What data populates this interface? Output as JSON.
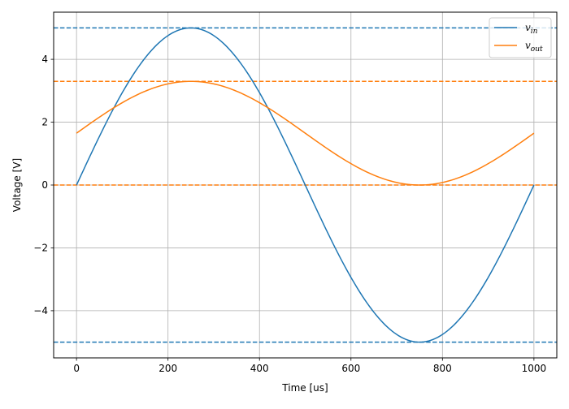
{
  "chart_data": {
    "type": "line",
    "title": "",
    "xlabel": "Time [us]",
    "ylabel": "Voltage [V]",
    "xlim": [
      -50,
      1050
    ],
    "ylim": [
      -5.5,
      5.5
    ],
    "xticks": [
      0,
      200,
      400,
      600,
      800,
      1000
    ],
    "yticks": [
      -4,
      -2,
      0,
      2,
      4
    ],
    "xtick_labels": [
      "0",
      "200",
      "400",
      "600",
      "800",
      "1000"
    ],
    "ytick_labels": [
      "−4",
      "−2",
      "0",
      "2",
      "4"
    ],
    "grid": true,
    "legend_position": "top-right",
    "series": [
      {
        "name": "v_in",
        "legend_main": "v",
        "legend_sub": "in",
        "color": "#1f77b4",
        "x": [
          0,
          50,
          100,
          150,
          200,
          250,
          300,
          350,
          400,
          450,
          500,
          550,
          600,
          650,
          700,
          750,
          800,
          850,
          900,
          950,
          1000
        ],
        "values": [
          0.0,
          1.55,
          2.94,
          4.05,
          4.76,
          5.0,
          4.76,
          4.05,
          2.94,
          1.55,
          0.0,
          -1.55,
          -2.94,
          -4.05,
          -4.76,
          -5.0,
          -4.76,
          -4.05,
          -2.94,
          -1.55,
          0.0
        ]
      },
      {
        "name": "v_out",
        "legend_main": "v",
        "legend_sub": "out",
        "color": "#ff7f0e",
        "x": [
          0,
          50,
          100,
          150,
          200,
          250,
          300,
          350,
          400,
          450,
          500,
          550,
          600,
          650,
          700,
          750,
          800,
          850,
          900,
          950,
          1000
        ],
        "values": [
          1.65,
          2.16,
          2.62,
          2.99,
          3.22,
          3.3,
          3.22,
          2.99,
          2.62,
          2.16,
          1.65,
          1.14,
          0.68,
          0.31,
          0.08,
          0.0,
          0.08,
          0.31,
          0.68,
          1.14,
          1.65
        ]
      }
    ],
    "reference_lines": [
      {
        "y": 5.0,
        "color": "#1f77b4",
        "style": "dashed"
      },
      {
        "y": -5.0,
        "color": "#1f77b4",
        "style": "dashed"
      },
      {
        "y": 3.3,
        "color": "#ff7f0e",
        "style": "dashed"
      },
      {
        "y": 0.0,
        "color": "#ff7f0e",
        "style": "dashed"
      }
    ]
  }
}
